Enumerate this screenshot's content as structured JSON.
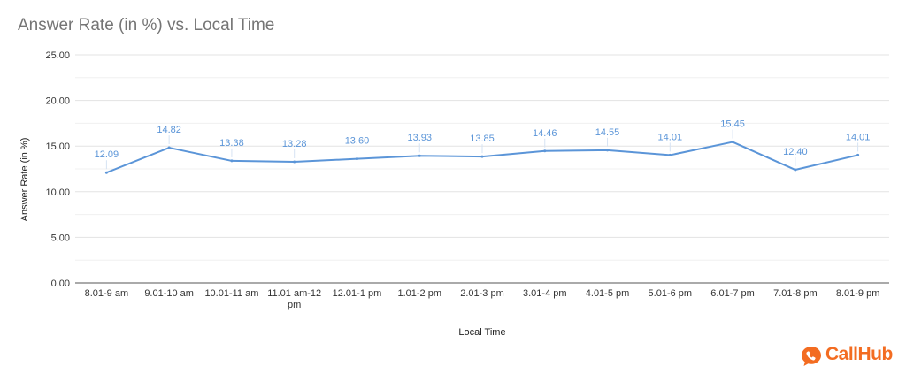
{
  "brand": {
    "name": "CallHub",
    "color": "#f36c21",
    "icon": "speech-bubble-phone-icon"
  },
  "chart_data": {
    "type": "line",
    "title": "Answer Rate (in %) vs. Local Time",
    "xlabel": "Local Time",
    "ylabel": "Answer Rate (in %)",
    "ylim": [
      0,
      25
    ],
    "yticks": [
      "0.00",
      "5.00",
      "10.00",
      "15.00",
      "20.00",
      "25.00"
    ],
    "grid": true,
    "legend": "none",
    "line_color": "#5b95d8",
    "categories": [
      "8.01-9 am",
      "9.01-10 am",
      "10.01-11 am",
      "11.01 am-12 pm",
      "12.01-1 pm",
      "1.01-2 pm",
      "2.01-3 pm",
      "3.01-4 pm",
      "4.01-5 pm",
      "5.01-6 pm",
      "6.01-7 pm",
      "7.01-8 pm",
      "8.01-9 pm"
    ],
    "series": [
      {
        "values": [
          12.09,
          14.82,
          13.38,
          13.28,
          13.6,
          13.93,
          13.85,
          14.46,
          14.55,
          14.01,
          15.45,
          12.4,
          14.01
        ],
        "labels": [
          "12.09",
          "14.82",
          "13.38",
          "13.28",
          "13.60",
          "13.93",
          "13.85",
          "14.46",
          "14.55",
          "14.01",
          "15.45",
          "12.40",
          "14.01"
        ]
      }
    ]
  }
}
